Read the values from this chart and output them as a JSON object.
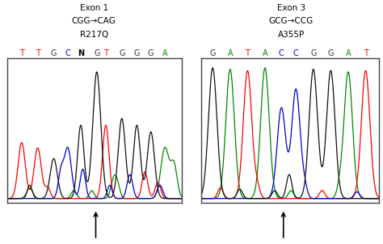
{
  "panel1": {
    "title_line1": "Exon 1",
    "title_line2": "CGG→CAG",
    "title_line3": "R217Q",
    "bases": [
      "T",
      "T",
      "G",
      "C",
      "N",
      "G",
      "T",
      "G",
      "G",
      "G",
      "A"
    ],
    "base_colors": [
      "#ff0000",
      "#ff0000",
      "#333333",
      "#0000cc",
      "#000000",
      "#333333",
      "#ff0000",
      "#333333",
      "#333333",
      "#333333",
      "#008800"
    ]
  },
  "panel2": {
    "title_line1": "Exon 3",
    "title_line2": "GCG→CCG",
    "title_line3": "A355P",
    "bases": [
      "G",
      "A",
      "T",
      "A",
      "C",
      "C",
      "G",
      "G",
      "A",
      "T"
    ],
    "base_colors": [
      "#333333",
      "#008800",
      "#ff0000",
      "#008800",
      "#0000cc",
      "#0000cc",
      "#333333",
      "#333333",
      "#008800",
      "#ff0000"
    ]
  },
  "peak_color_A": "#008800",
  "peak_color_T": "#ff0000",
  "peak_color_C": "#0000cc",
  "peak_color_G": "#111111"
}
